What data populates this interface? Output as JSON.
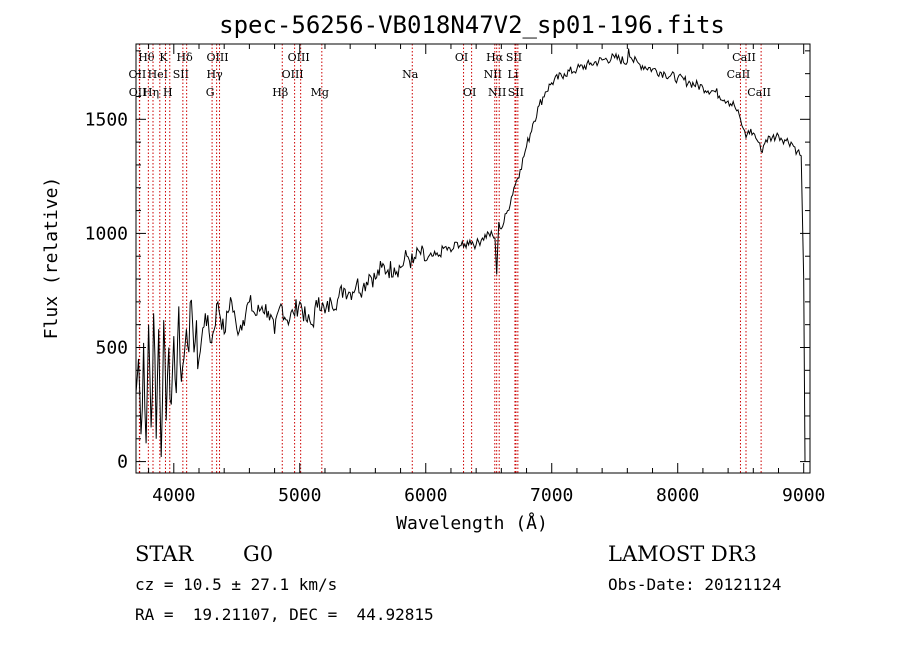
{
  "chart_data": {
    "type": "line",
    "title": "spec-56256-VB018N47V2_sp01-196.fits",
    "xlabel": "Wavelength (Å)",
    "ylabel": "Flux (relative)",
    "xlim": [
      3700,
      9050
    ],
    "ylim": [
      -50,
      1830
    ],
    "xticks": [
      {
        "value": 4000,
        "label": "4000"
      },
      {
        "value": 5000,
        "label": "5000"
      },
      {
        "value": 6000,
        "label": "6000"
      },
      {
        "value": 7000,
        "label": "7000"
      },
      {
        "value": 8000,
        "label": "8000"
      },
      {
        "value": 9000,
        "label": "9000"
      }
    ],
    "yticks": [
      {
        "value": 0,
        "label": "0"
      },
      {
        "value": 500,
        "label": "500"
      },
      {
        "value": 1000,
        "label": "1000"
      },
      {
        "value": 1500,
        "label": "1500"
      }
    ],
    "series": [
      {
        "name": "flux",
        "color": "#000000",
        "x": [
          3700,
          3720,
          3740,
          3760,
          3780,
          3800,
          3820,
          3840,
          3860,
          3880,
          3900,
          3920,
          3940,
          3960,
          3980,
          4000,
          4020,
          4040,
          4060,
          4080,
          4100,
          4150,
          4200,
          4250,
          4300,
          4350,
          4400,
          4450,
          4500,
          4550,
          4600,
          4650,
          4700,
          4750,
          4800,
          4850,
          4900,
          4950,
          5000,
          5050,
          5100,
          5150,
          5200,
          5250,
          5300,
          5350,
          5400,
          5450,
          5500,
          5550,
          5600,
          5650,
          5700,
          5750,
          5800,
          5850,
          5900,
          5950,
          6000,
          6050,
          6100,
          6150,
          6200,
          6250,
          6300,
          6350,
          6400,
          6450,
          6500,
          6550,
          6563,
          6580,
          6600,
          6650,
          6700,
          6750,
          6800,
          6850,
          6900,
          6950,
          7000,
          7100,
          7200,
          7300,
          7400,
          7500,
          7600,
          7610,
          7640,
          7700,
          7800,
          7900,
          8000,
          8100,
          8200,
          8300,
          8400,
          8450,
          8498,
          8520,
          8542,
          8560,
          8600,
          8640,
          8662,
          8700,
          8750,
          8800,
          8850,
          8900,
          8950,
          8980,
          9000,
          9010
        ],
        "y": [
          300,
          450,
          120,
          520,
          80,
          600,
          150,
          650,
          100,
          580,
          20,
          620,
          180,
          500,
          250,
          550,
          300,
          680,
          350,
          450,
          580,
          600,
          450,
          650,
          520,
          700,
          560,
          720,
          580,
          620,
          700,
          640,
          680,
          660,
          560,
          690,
          620,
          650,
          700,
          620,
          600,
          720,
          650,
          700,
          710,
          760,
          740,
          780,
          760,
          820,
          800,
          850,
          840,
          850,
          850,
          900,
          870,
          920,
          880,
          900,
          900,
          940,
          920,
          960,
          940,
          970,
          950,
          980,
          1000,
          980,
          820,
          1050,
          1020,
          1100,
          1200,
          1280,
          1380,
          1480,
          1560,
          1620,
          1660,
          1700,
          1720,
          1740,
          1760,
          1770,
          1750,
          1810,
          1760,
          1740,
          1720,
          1700,
          1680,
          1660,
          1640,
          1620,
          1580,
          1560,
          1500,
          1460,
          1420,
          1450,
          1440,
          1400,
          1360,
          1410,
          1420,
          1430,
          1410,
          1400,
          1360,
          1340,
          800,
          0
        ]
      }
    ],
    "lines": [
      {
        "name": "H-theta",
        "wavelength": 3798,
        "label": "Hθ",
        "row": 0
      },
      {
        "name": "OII",
        "wavelength": 3727,
        "label": "OII",
        "row": 1
      },
      {
        "name": "OII-2",
        "wavelength": 3729,
        "label": "OII",
        "row": 2
      },
      {
        "name": "H-eta",
        "wavelength": 3835,
        "label": "Hη",
        "row": 2
      },
      {
        "name": "HeI",
        "wavelength": 3889,
        "label": "HeI",
        "row": 1
      },
      {
        "name": "K",
        "wavelength": 3934,
        "label": "K",
        "row": 0
      },
      {
        "name": "SII-blue",
        "wavelength": 4072,
        "label": "SII",
        "row": 1
      },
      {
        "name": "H",
        "wavelength": 3968,
        "label": "H",
        "row": 2
      },
      {
        "name": "H-delta",
        "wavelength": 4102,
        "label": "Hδ",
        "row": 0
      },
      {
        "name": "OIII-blue",
        "wavelength": 4363,
        "label": "OIII",
        "row": 0
      },
      {
        "name": "H-gamma",
        "wavelength": 4340,
        "label": "Hγ",
        "row": 1
      },
      {
        "name": "G",
        "wavelength": 4304,
        "label": "G",
        "row": 2
      },
      {
        "name": "H-beta",
        "wavelength": 4861,
        "label": "Hβ",
        "row": 2
      },
      {
        "name": "OIII-4959",
        "wavelength": 4959,
        "label": "OIII",
        "row": 1
      },
      {
        "name": "OIII-5007",
        "wavelength": 5007,
        "label": "OIII",
        "row": 0
      },
      {
        "name": "Mg",
        "wavelength": 5175,
        "label": "Mg",
        "row": 2
      },
      {
        "name": "Na",
        "wavelength": 5893,
        "label": "Na",
        "row": 1
      },
      {
        "name": "OI-6300",
        "wavelength": 6300,
        "label": "OI",
        "row": 0
      },
      {
        "name": "OI-6364",
        "wavelength": 6364,
        "label": "OI",
        "row": 2
      },
      {
        "name": "NII-6548",
        "wavelength": 6548,
        "label": "NII",
        "row": 1
      },
      {
        "name": "H-alpha",
        "wavelength": 6563,
        "label": "Hα",
        "row": 0
      },
      {
        "name": "NII-6583",
        "wavelength": 6583,
        "label": "NII",
        "row": 2
      },
      {
        "name": "SII-6716",
        "wavelength": 6716,
        "label": "SII",
        "row": 0
      },
      {
        "name": "Li",
        "wavelength": 6708,
        "label": "Li",
        "row": 1
      },
      {
        "name": "SII-6731",
        "wavelength": 6731,
        "label": "SII",
        "row": 2
      },
      {
        "name": "CaII-8498",
        "wavelength": 8498,
        "label": "CaII",
        "row": 1
      },
      {
        "name": "CaII-8542",
        "wavelength": 8542,
        "label": "CaII",
        "row": 0
      },
      {
        "name": "CaII-8662",
        "wavelength": 8662,
        "label": "CaII",
        "row": 2
      }
    ]
  },
  "info": {
    "class_label": "STAR",
    "subclass": "G0",
    "survey": "LAMOST DR3",
    "cz": "cz = 10.5 ± 27.1 km/s",
    "obs_date": "Obs-Date: 20121124",
    "coords": "RA =  19.21107, DEC =  44.92815"
  },
  "colors": {
    "line_marker": "#cc0000",
    "spectrum": "#000000",
    "frame": "#000000"
  }
}
